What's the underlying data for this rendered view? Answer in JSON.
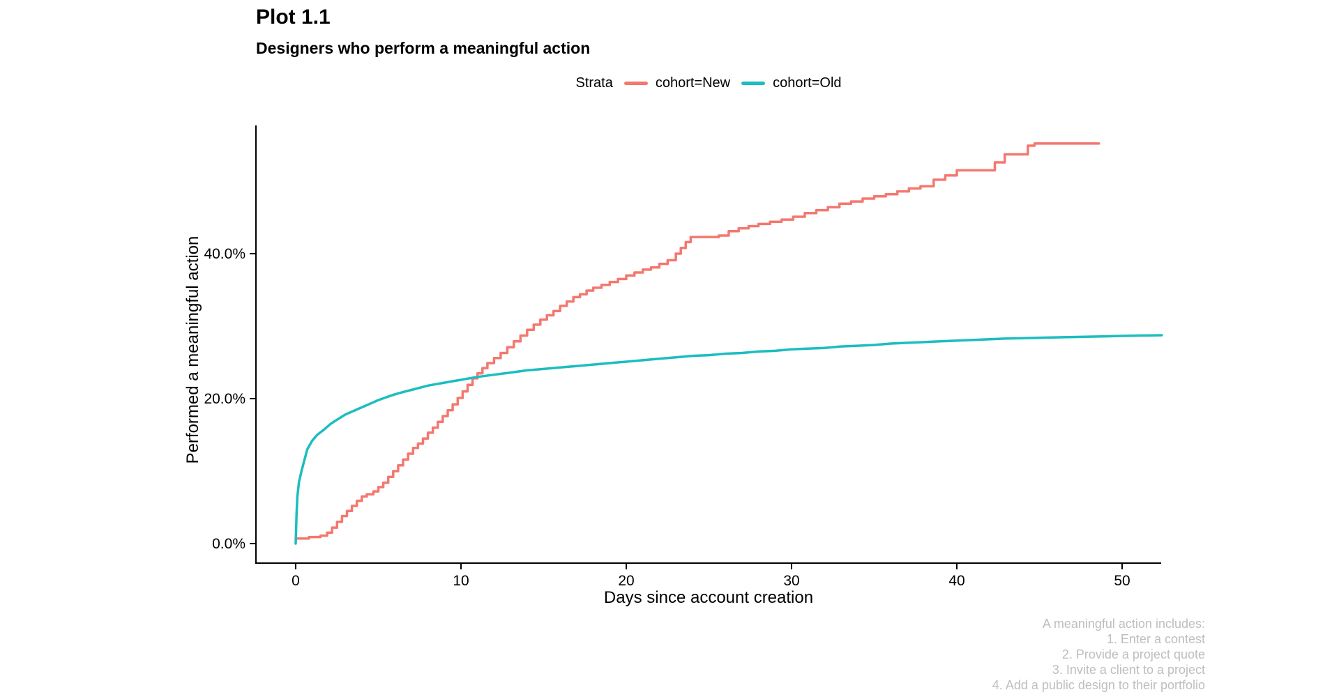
{
  "page": {
    "title": "Plot 1.1",
    "subtitle": "Designers who perform a meaningful action"
  },
  "legend": {
    "title": "Strata"
  },
  "caption": {
    "color": "#bebebe",
    "lines": [
      "A meaningful action includes:",
      "1. Enter a contest",
      "2. Provide a project quote",
      "3. Invite a client to a project",
      "4. Add a public design to their portfolio"
    ]
  },
  "chart_data": {
    "type": "line",
    "title": "Plot 1.1",
    "subtitle": "Designers who perform a meaningful action",
    "xlabel": "Days since account creation",
    "ylabel": "Performed a meaningful action",
    "xlim": [
      0,
      52.5
    ],
    "ylim": [
      0,
      56
    ],
    "grid": "off",
    "legend_position": "top-center",
    "axis_color": "#000000",
    "x_ticks": {
      "values": [
        0,
        10,
        20,
        30,
        40,
        50
      ],
      "labels": [
        "0",
        "10",
        "20",
        "30",
        "40",
        "50"
      ]
    },
    "y_ticks": {
      "values": [
        0,
        20,
        40
      ],
      "labels": [
        "0.0%",
        "20.0%",
        "40.0%"
      ]
    },
    "series": [
      {
        "name": "cohort=New",
        "color": "#f3786f",
        "style": "step",
        "points": [
          [
            0,
            0.7
          ],
          [
            0.8,
            0.9
          ],
          [
            1.5,
            1.1
          ],
          [
            1.9,
            1.5
          ],
          [
            2.2,
            2.2
          ],
          [
            2.5,
            3.0
          ],
          [
            2.8,
            3.8
          ],
          [
            3.1,
            4.5
          ],
          [
            3.4,
            5.2
          ],
          [
            3.7,
            5.9
          ],
          [
            4.0,
            6.5
          ],
          [
            4.3,
            6.8
          ],
          [
            4.7,
            7.2
          ],
          [
            5.0,
            7.8
          ],
          [
            5.3,
            8.4
          ],
          [
            5.6,
            9.2
          ],
          [
            5.9,
            10.0
          ],
          [
            6.2,
            10.8
          ],
          [
            6.5,
            11.6
          ],
          [
            6.8,
            12.4
          ],
          [
            7.1,
            13.2
          ],
          [
            7.4,
            13.8
          ],
          [
            7.7,
            14.5
          ],
          [
            8.0,
            15.3
          ],
          [
            8.3,
            16.0
          ],
          [
            8.6,
            16.8
          ],
          [
            8.9,
            17.6
          ],
          [
            9.2,
            18.4
          ],
          [
            9.5,
            19.2
          ],
          [
            9.8,
            20.1
          ],
          [
            10.1,
            21.0
          ],
          [
            10.4,
            21.9
          ],
          [
            10.7,
            22.8
          ],
          [
            11.0,
            23.5
          ],
          [
            11.3,
            24.2
          ],
          [
            11.6,
            24.9
          ],
          [
            12.0,
            25.6
          ],
          [
            12.4,
            26.3
          ],
          [
            12.8,
            27.1
          ],
          [
            13.2,
            27.9
          ],
          [
            13.6,
            28.7
          ],
          [
            14.0,
            29.5
          ],
          [
            14.4,
            30.2
          ],
          [
            14.8,
            30.9
          ],
          [
            15.2,
            31.5
          ],
          [
            15.6,
            32.1
          ],
          [
            16.0,
            32.8
          ],
          [
            16.4,
            33.4
          ],
          [
            16.8,
            34.0
          ],
          [
            17.2,
            34.4
          ],
          [
            17.6,
            34.9
          ],
          [
            18.0,
            35.3
          ],
          [
            18.5,
            35.7
          ],
          [
            19.0,
            36.1
          ],
          [
            19.5,
            36.5
          ],
          [
            20.0,
            37.0
          ],
          [
            20.5,
            37.4
          ],
          [
            21.0,
            37.8
          ],
          [
            21.5,
            38.1
          ],
          [
            22.0,
            38.6
          ],
          [
            22.5,
            39.1
          ],
          [
            23.0,
            40.0
          ],
          [
            23.3,
            40.8
          ],
          [
            23.6,
            41.6
          ],
          [
            23.9,
            42.3
          ],
          [
            25.6,
            42.5
          ],
          [
            26.2,
            43.1
          ],
          [
            26.8,
            43.5
          ],
          [
            27.4,
            43.8
          ],
          [
            28.0,
            44.1
          ],
          [
            28.7,
            44.4
          ],
          [
            29.4,
            44.7
          ],
          [
            30.1,
            45.1
          ],
          [
            30.8,
            45.6
          ],
          [
            31.5,
            46.0
          ],
          [
            32.2,
            46.4
          ],
          [
            32.9,
            46.9
          ],
          [
            33.6,
            47.2
          ],
          [
            34.3,
            47.6
          ],
          [
            35.0,
            47.9
          ],
          [
            35.7,
            48.2
          ],
          [
            36.4,
            48.6
          ],
          [
            37.1,
            49.0
          ],
          [
            37.8,
            49.3
          ],
          [
            38.6,
            50.2
          ],
          [
            39.3,
            50.8
          ],
          [
            40.0,
            51.5
          ],
          [
            42.3,
            52.6
          ],
          [
            42.9,
            53.7
          ],
          [
            44.3,
            54.9
          ],
          [
            44.7,
            55.2
          ],
          [
            48.6,
            55.2
          ]
        ]
      },
      {
        "name": "cohort=Old",
        "color": "#1cbdc0",
        "style": "line",
        "points": [
          [
            0,
            0
          ],
          [
            0.05,
            4.0
          ],
          [
            0.1,
            6.5
          ],
          [
            0.2,
            8.5
          ],
          [
            0.35,
            10.0
          ],
          [
            0.5,
            11.3
          ],
          [
            0.7,
            13.0
          ],
          [
            1.0,
            14.2
          ],
          [
            1.3,
            15.0
          ],
          [
            1.7,
            15.7
          ],
          [
            2.1,
            16.5
          ],
          [
            2.5,
            17.1
          ],
          [
            3.0,
            17.8
          ],
          [
            3.5,
            18.3
          ],
          [
            4.0,
            18.8
          ],
          [
            4.5,
            19.3
          ],
          [
            5.0,
            19.8
          ],
          [
            5.5,
            20.2
          ],
          [
            6.0,
            20.6
          ],
          [
            6.5,
            20.9
          ],
          [
            7.0,
            21.2
          ],
          [
            7.5,
            21.5
          ],
          [
            8.0,
            21.8
          ],
          [
            8.5,
            22.0
          ],
          [
            9.0,
            22.2
          ],
          [
            9.5,
            22.4
          ],
          [
            10.0,
            22.6
          ],
          [
            11.0,
            23.0
          ],
          [
            12.0,
            23.3
          ],
          [
            13.0,
            23.6
          ],
          [
            14.0,
            23.9
          ],
          [
            15.0,
            24.1
          ],
          [
            16.0,
            24.3
          ],
          [
            17.0,
            24.5
          ],
          [
            18.0,
            24.7
          ],
          [
            19.0,
            24.9
          ],
          [
            20.0,
            25.1
          ],
          [
            21.0,
            25.3
          ],
          [
            22.0,
            25.5
          ],
          [
            23.0,
            25.7
          ],
          [
            24.0,
            25.9
          ],
          [
            25.0,
            26.0
          ],
          [
            26.0,
            26.2
          ],
          [
            27.0,
            26.3
          ],
          [
            28.0,
            26.5
          ],
          [
            29.0,
            26.6
          ],
          [
            30.0,
            26.8
          ],
          [
            31.0,
            26.9
          ],
          [
            32.0,
            27.0
          ],
          [
            33.0,
            27.2
          ],
          [
            34.0,
            27.3
          ],
          [
            35.0,
            27.4
          ],
          [
            36.0,
            27.6
          ],
          [
            37.0,
            27.7
          ],
          [
            38.0,
            27.8
          ],
          [
            39.0,
            27.9
          ],
          [
            40.0,
            28.0
          ],
          [
            41.0,
            28.1
          ],
          [
            42.0,
            28.2
          ],
          [
            43.0,
            28.3
          ],
          [
            44.0,
            28.35
          ],
          [
            45.0,
            28.4
          ],
          [
            46.0,
            28.45
          ],
          [
            47.0,
            28.5
          ],
          [
            48.0,
            28.55
          ],
          [
            49.0,
            28.6
          ],
          [
            50.0,
            28.65
          ],
          [
            51.0,
            28.7
          ],
          [
            52.4,
            28.75
          ]
        ]
      }
    ]
  }
}
